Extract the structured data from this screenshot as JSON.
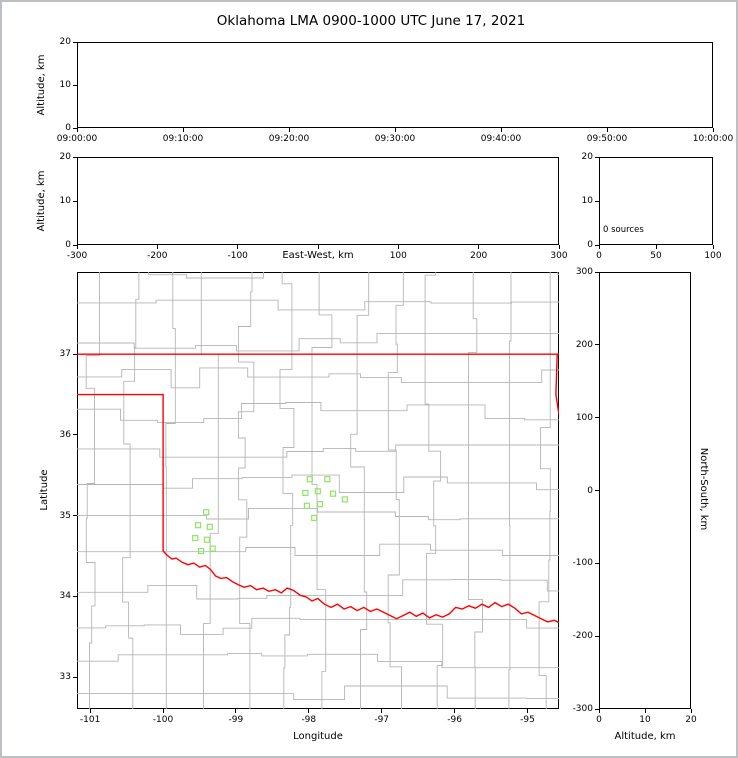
{
  "title": "Oklahoma LMA 0900-1000 UTC June 17, 2021",
  "panels": {
    "time_height": {
      "ylabel": "Altitude, km",
      "yticks": [
        "20",
        "10",
        "0"
      ],
      "xticks": [
        "09:00:00",
        "09:10:00",
        "09:20:00",
        "09:30:00",
        "09:40:00",
        "09:50:00",
        "10:00:00"
      ]
    },
    "ew_height": {
      "ylabel": "Altitude, km",
      "xlabel": "East-West, km",
      "yticks": [
        "20",
        "10",
        "0"
      ],
      "xticks": [
        "-300",
        "-200",
        "-100",
        "",
        "100",
        "200",
        "300"
      ]
    },
    "histogram": {
      "yticks": [
        "20",
        "10",
        "0"
      ],
      "xticks": [
        "0",
        "50",
        "100"
      ],
      "annotation": "0 sources"
    },
    "map": {
      "xlabel": "Longitude",
      "ylabel": "Latitude",
      "xticks": [
        "-101",
        "-100",
        "-99",
        "-98",
        "-97",
        "-96",
        "-95"
      ],
      "yticks": [
        "37",
        "36",
        "35",
        "34",
        "33"
      ]
    },
    "ns_height": {
      "xlabel": "Altitude, km",
      "ylabel": "North-South, km",
      "xticks": [
        "0",
        "10",
        "20"
      ],
      "yticks": [
        "300",
        "200",
        "100",
        "0",
        "-100",
        "-200",
        "-300"
      ]
    }
  },
  "chart_data": [
    {
      "id": "time_height_panel",
      "type": "scatter",
      "xlabel_ticks": [
        "09:00:00",
        "09:10:00",
        "09:20:00",
        "09:30:00",
        "09:40:00",
        "09:50:00",
        "10:00:00"
      ],
      "ylabel": "Altitude, km",
      "y_range": [
        0,
        20
      ],
      "points": []
    },
    {
      "id": "ew_height_panel",
      "type": "scatter",
      "xlabel": "East-West, km",
      "x_range": [
        -300,
        300
      ],
      "y_range": [
        0,
        20
      ],
      "points": []
    },
    {
      "id": "altitude_histogram_panel",
      "type": "bar",
      "x_range": [
        0,
        100
      ],
      "y_range": [
        0,
        20
      ],
      "annotation": "0 sources",
      "values": []
    },
    {
      "id": "map_panel",
      "type": "scatter",
      "xlabel": "Longitude",
      "ylabel": "Latitude",
      "x_range": [
        -101.18,
        -94.575
      ],
      "y_range": [
        32.6,
        38.02
      ],
      "station_color": "#8ee465",
      "border_color": "#ff0000",
      "county_color": "#b5b5b5",
      "stations": [
        [
          -97.99,
          35.45
        ],
        [
          -97.75,
          35.45
        ],
        [
          -98.05,
          35.28
        ],
        [
          -97.88,
          35.3
        ],
        [
          -97.67,
          35.27
        ],
        [
          -98.03,
          35.12
        ],
        [
          -97.85,
          35.14
        ],
        [
          -97.93,
          34.97
        ],
        [
          -97.51,
          35.2
        ],
        [
          -99.41,
          35.04
        ],
        [
          -99.52,
          34.88
        ],
        [
          -99.36,
          34.86
        ],
        [
          -99.56,
          34.72
        ],
        [
          -99.4,
          34.7
        ],
        [
          -99.48,
          34.56
        ],
        [
          -99.32,
          34.59
        ]
      ],
      "state_border_segments": [
        [
          [
            -101.18,
            37.0
          ],
          [
            -94.575,
            37.0
          ]
        ],
        [
          [
            -94.6,
            37.0
          ],
          [
            -94.618,
            36.5
          ],
          [
            -94.575,
            36.25
          ]
        ],
        [
          [
            -101.18,
            36.5
          ],
          [
            -100.0,
            36.5
          ],
          [
            -100.0,
            34.56
          ],
          [
            -99.95,
            34.51
          ],
          [
            -99.88,
            34.46
          ],
          [
            -99.82,
            34.47
          ],
          [
            -99.74,
            34.42
          ],
          [
            -99.66,
            34.39
          ],
          [
            -99.58,
            34.41
          ],
          [
            -99.5,
            34.36
          ],
          [
            -99.42,
            34.38
          ],
          [
            -99.35,
            34.33
          ],
          [
            -99.28,
            34.25
          ],
          [
            -99.21,
            34.22
          ],
          [
            -99.13,
            34.23
          ],
          [
            -99.05,
            34.18
          ],
          [
            -98.97,
            34.14
          ],
          [
            -98.89,
            34.11
          ],
          [
            -98.8,
            34.13
          ],
          [
            -98.72,
            34.08
          ],
          [
            -98.63,
            34.1
          ],
          [
            -98.55,
            34.06
          ],
          [
            -98.46,
            34.08
          ],
          [
            -98.38,
            34.04
          ],
          [
            -98.3,
            34.1
          ],
          [
            -98.21,
            34.07
          ],
          [
            -98.12,
            34.01
          ],
          [
            -98.04,
            33.99
          ],
          [
            -97.96,
            33.94
          ],
          [
            -97.88,
            33.97
          ],
          [
            -97.79,
            33.9
          ],
          [
            -97.7,
            33.86
          ],
          [
            -97.61,
            33.9
          ],
          [
            -97.52,
            33.84
          ],
          [
            -97.43,
            33.87
          ],
          [
            -97.34,
            33.82
          ],
          [
            -97.25,
            33.86
          ],
          [
            -97.16,
            33.81
          ],
          [
            -97.07,
            33.84
          ],
          [
            -96.98,
            33.8
          ],
          [
            -96.89,
            33.76
          ],
          [
            -96.8,
            33.72
          ],
          [
            -96.71,
            33.76
          ],
          [
            -96.62,
            33.8
          ],
          [
            -96.53,
            33.75
          ],
          [
            -96.44,
            33.79
          ],
          [
            -96.35,
            33.73
          ],
          [
            -96.26,
            33.77
          ],
          [
            -96.17,
            33.74
          ],
          [
            -96.08,
            33.78
          ],
          [
            -95.99,
            33.86
          ],
          [
            -95.9,
            33.84
          ],
          [
            -95.81,
            33.88
          ],
          [
            -95.72,
            33.85
          ],
          [
            -95.63,
            33.9
          ],
          [
            -95.54,
            33.86
          ],
          [
            -95.45,
            33.92
          ],
          [
            -95.36,
            33.87
          ],
          [
            -95.27,
            33.9
          ],
          [
            -95.18,
            33.85
          ],
          [
            -95.09,
            33.78
          ],
          [
            -95.0,
            33.8
          ],
          [
            -94.91,
            33.76
          ],
          [
            -94.82,
            33.72
          ],
          [
            -94.73,
            33.68
          ],
          [
            -94.64,
            33.7
          ],
          [
            -94.575,
            33.67
          ]
        ]
      ],
      "county_grid": {
        "seed": 7,
        "v_start": -100.95,
        "v_step": 0.52,
        "v_count": 13,
        "h_start": 32.78,
        "h_step": 0.437,
        "h_count": 13
      }
    },
    {
      "id": "ns_height_panel",
      "type": "scatter",
      "xlabel": "Altitude, km",
      "ylabel": "North-South, km",
      "x_range": [
        0,
        20
      ],
      "y_range": [
        -300,
        300
      ],
      "points": []
    }
  ]
}
